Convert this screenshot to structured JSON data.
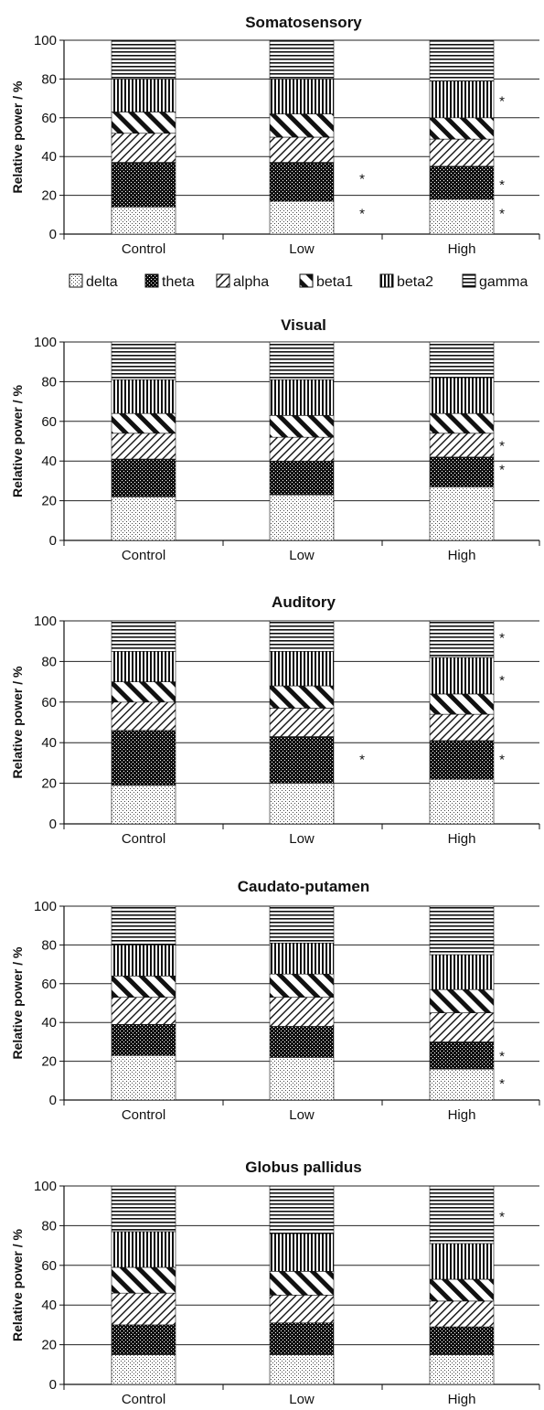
{
  "chart_data": [
    {
      "type": "bar",
      "stacked": true,
      "title": "Somatosensory",
      "ylabel": "Relative power / %",
      "ylim": [
        0,
        100
      ],
      "yticks": [
        0,
        20,
        40,
        60,
        80,
        100
      ],
      "grid": true,
      "categories": [
        "Control",
        "Low",
        "High"
      ],
      "series": [
        {
          "name": "delta",
          "values": [
            14,
            17,
            18
          ]
        },
        {
          "name": "theta",
          "values": [
            23,
            20,
            17
          ]
        },
        {
          "name": "alpha",
          "values": [
            15,
            13,
            14
          ]
        },
        {
          "name": "beta1",
          "values": [
            11,
            12,
            11
          ]
        },
        {
          "name": "beta2",
          "values": [
            17,
            18,
            19
          ]
        },
        {
          "name": "gamma",
          "values": [
            20,
            20,
            21
          ]
        }
      ],
      "annotations": [
        {
          "category": "Low",
          "y": 12,
          "text": "*"
        },
        {
          "category": "Low",
          "y": 30,
          "text": "*"
        },
        {
          "category": "High",
          "y": 12,
          "text": "*"
        },
        {
          "category": "High",
          "y": 27,
          "text": "*"
        },
        {
          "category": "High",
          "y": 70,
          "text": "*"
        }
      ]
    },
    {
      "type": "bar",
      "stacked": true,
      "title": "Visual",
      "ylabel": "Relative power / %",
      "ylim": [
        0,
        100
      ],
      "yticks": [
        0,
        20,
        40,
        60,
        80,
        100
      ],
      "grid": true,
      "categories": [
        "Control",
        "Low",
        "High"
      ],
      "series": [
        {
          "name": "delta",
          "values": [
            22,
            23,
            27
          ]
        },
        {
          "name": "theta",
          "values": [
            19,
            17,
            15
          ]
        },
        {
          "name": "alpha",
          "values": [
            13,
            12,
            12
          ]
        },
        {
          "name": "beta1",
          "values": [
            10,
            11,
            10
          ]
        },
        {
          "name": "beta2",
          "values": [
            17,
            18,
            18
          ]
        },
        {
          "name": "gamma",
          "values": [
            19,
            19,
            18
          ]
        }
      ],
      "annotations": [
        {
          "category": "High",
          "y": 37,
          "text": "*"
        },
        {
          "category": "High",
          "y": 49,
          "text": "*"
        }
      ]
    },
    {
      "type": "bar",
      "stacked": true,
      "title": "Auditory",
      "ylabel": "Relative power / %",
      "ylim": [
        0,
        100
      ],
      "yticks": [
        0,
        20,
        40,
        60,
        80,
        100
      ],
      "grid": true,
      "categories": [
        "Control",
        "Low",
        "High"
      ],
      "series": [
        {
          "name": "delta",
          "values": [
            19,
            20,
            22
          ]
        },
        {
          "name": "theta",
          "values": [
            27,
            23,
            19
          ]
        },
        {
          "name": "alpha",
          "values": [
            14,
            14,
            13
          ]
        },
        {
          "name": "beta1",
          "values": [
            10,
            11,
            10
          ]
        },
        {
          "name": "beta2",
          "values": [
            15,
            17,
            18
          ]
        },
        {
          "name": "gamma",
          "values": [
            15,
            15,
            18
          ]
        }
      ],
      "annotations": [
        {
          "category": "Low",
          "y": 33,
          "text": "*"
        },
        {
          "category": "High",
          "y": 33,
          "text": "*"
        },
        {
          "category": "High",
          "y": 72,
          "text": "*"
        },
        {
          "category": "High",
          "y": 93,
          "text": "*"
        }
      ]
    },
    {
      "type": "bar",
      "stacked": true,
      "title": "Caudato-putamen",
      "ylabel": "Relative power / %",
      "ylim": [
        0,
        100
      ],
      "yticks": [
        0,
        20,
        40,
        60,
        80,
        100
      ],
      "grid": true,
      "categories": [
        "Control",
        "Low",
        "High"
      ],
      "series": [
        {
          "name": "delta",
          "values": [
            23,
            22,
            16
          ]
        },
        {
          "name": "theta",
          "values": [
            16,
            16,
            14
          ]
        },
        {
          "name": "alpha",
          "values": [
            14,
            15,
            15
          ]
        },
        {
          "name": "beta1",
          "values": [
            11,
            12,
            12
          ]
        },
        {
          "name": "beta2",
          "values": [
            16,
            16,
            18
          ]
        },
        {
          "name": "gamma",
          "values": [
            20,
            19,
            25
          ]
        }
      ],
      "annotations": [
        {
          "category": "High",
          "y": 10,
          "text": "*"
        },
        {
          "category": "High",
          "y": 24,
          "text": "*"
        }
      ]
    },
    {
      "type": "bar",
      "stacked": true,
      "title": "Globus pallidus",
      "ylabel": "Relative power / %",
      "ylim": [
        0,
        100
      ],
      "yticks": [
        0,
        20,
        40,
        60,
        80,
        100
      ],
      "grid": true,
      "categories": [
        "Control",
        "Low",
        "High"
      ],
      "series": [
        {
          "name": "delta",
          "values": [
            15,
            15,
            15
          ]
        },
        {
          "name": "theta",
          "values": [
            15,
            16,
            14
          ]
        },
        {
          "name": "alpha",
          "values": [
            16,
            14,
            13
          ]
        },
        {
          "name": "beta1",
          "values": [
            13,
            12,
            11
          ]
        },
        {
          "name": "beta2",
          "values": [
            18,
            19,
            18
          ]
        },
        {
          "name": "gamma",
          "values": [
            23,
            24,
            29
          ]
        }
      ],
      "annotations": [
        {
          "category": "High",
          "y": 86,
          "text": "*"
        }
      ]
    }
  ],
  "legend": {
    "position": "below-first-chart",
    "items": [
      "delta",
      "theta",
      "alpha",
      "beta1",
      "beta2",
      "gamma"
    ]
  },
  "colors": {
    "ink": "#111111",
    "grid": "#222222",
    "fill": "#ffffff"
  }
}
